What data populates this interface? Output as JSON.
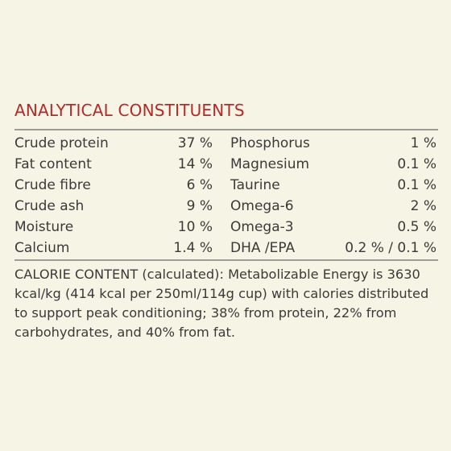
{
  "section": {
    "title": "ANALYTICAL CONSTITUENTS"
  },
  "constituents": [
    {
      "left_name": "Crude protein",
      "left_value": "37 %",
      "right_name": "Phosphorus",
      "right_value": "1 %"
    },
    {
      "left_name": "Fat content",
      "left_value": "14 %",
      "right_name": "Magnesium",
      "right_value": "0.1 %"
    },
    {
      "left_name": "Crude fibre",
      "left_value": "6 %",
      "right_name": "Taurine",
      "right_value": "0.1 %"
    },
    {
      "left_name": "Crude ash",
      "left_value": "9 %",
      "right_name": "Omega-6",
      "right_value": "2 %"
    },
    {
      "left_name": "Moisture",
      "left_value": "10 %",
      "right_name": "Omega-3",
      "right_value": "0.5 %"
    },
    {
      "left_name": "Calcium",
      "left_value": "1.4 %",
      "right_name": "DHA /EPA",
      "right_value": "0.2 % / 0.1 %"
    }
  ],
  "calorie_content": {
    "text": "CALORIE CONTENT (calculated): Metabolizable Energy is 3630 kcal/kg (414 kcal per 250ml/114g cup) with calories distributed to support peak conditioning; 38% from protein, 22% from carbohydrates, and 40% from fat."
  },
  "colors": {
    "background": "#f6f4e5",
    "title": "#b22a2a",
    "text": "#3a3a3a",
    "rule": "#9d9d98"
  }
}
